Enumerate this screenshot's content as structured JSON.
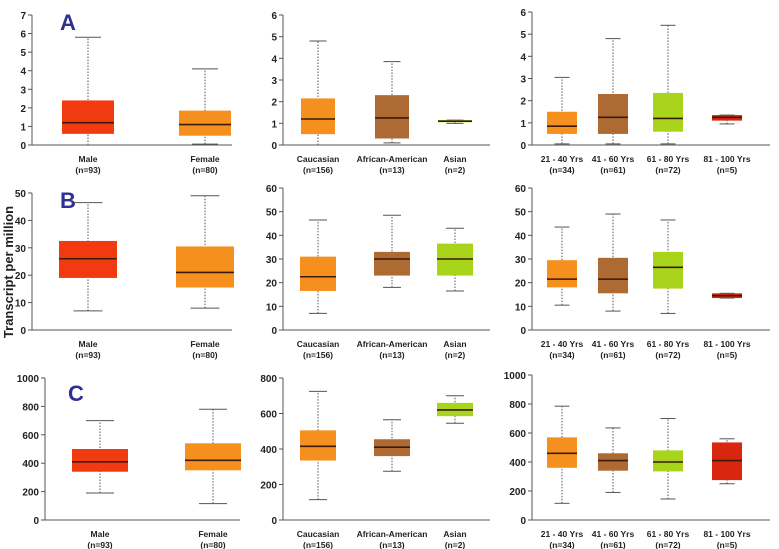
{
  "ylabel": "Transcript per million",
  "colors": {
    "red": "#f23a10",
    "orange": "#f5901f",
    "brown": "#ad6a33",
    "lime": "#a9d41c",
    "darkred": "#d8260f",
    "letter": "#2e3192"
  },
  "chart_data": [
    {
      "type": "box",
      "panel_label": "A",
      "ylim": [
        0,
        7
      ],
      "yticks": [
        0,
        1,
        2,
        3,
        4,
        5,
        6,
        7
      ],
      "categories": [
        {
          "name": "Male",
          "n": "(n=93)",
          "color": "red",
          "stats": [
            0,
            0.6,
            1.2,
            2.4,
            5.8
          ]
        },
        {
          "name": "Female",
          "n": "(n=80)",
          "color": "orange",
          "stats": [
            0.05,
            0.5,
            1.1,
            1.85,
            4.1
          ]
        }
      ]
    },
    {
      "type": "box",
      "panel_label": "",
      "ylim": [
        0,
        6
      ],
      "yticks": [
        0,
        1,
        2,
        3,
        4,
        5,
        6
      ],
      "categories": [
        {
          "name": "Caucasian",
          "n": "(n=156)",
          "color": "orange",
          "stats": [
            0,
            0.5,
            1.2,
            2.15,
            4.8
          ]
        },
        {
          "name": "African-American",
          "n": "(n=13)",
          "color": "brown",
          "stats": [
            0.1,
            0.3,
            1.25,
            2.3,
            3.85
          ]
        },
        {
          "name": "Asian",
          "n": "(n=2)",
          "color": "lime",
          "stats": [
            1.0,
            1.05,
            1.1,
            1.15,
            1.15
          ]
        }
      ]
    },
    {
      "type": "box",
      "panel_label": "",
      "ylim": [
        0,
        6
      ],
      "yticks": [
        0,
        1,
        2,
        3,
        4,
        5,
        6
      ],
      "categories": [
        {
          "name": "21 - 40 Yrs",
          "n": "(n=34)",
          "color": "orange",
          "stats": [
            0.05,
            0.5,
            0.85,
            1.5,
            3.05
          ]
        },
        {
          "name": "41 - 60 Yrs",
          "n": "(n=61)",
          "color": "brown",
          "stats": [
            0.05,
            0.5,
            1.25,
            2.3,
            4.8
          ]
        },
        {
          "name": "61 - 80 Yrs",
          "n": "(n=72)",
          "color": "lime",
          "stats": [
            0.05,
            0.6,
            1.2,
            2.35,
            5.4
          ]
        },
        {
          "name": "81 - 100 Yrs",
          "n": "(n=5)",
          "color": "darkred",
          "stats": [
            0.95,
            1.1,
            1.25,
            1.35,
            1.35
          ]
        }
      ]
    },
    {
      "type": "box",
      "panel_label": "B",
      "ylim": [
        0,
        50
      ],
      "yticks": [
        0,
        10,
        20,
        30,
        40,
        50
      ],
      "categories": [
        {
          "name": "Male",
          "n": "(n=93)",
          "color": "red",
          "stats": [
            7,
            19,
            26,
            32.5,
            46.5
          ]
        },
        {
          "name": "Female",
          "n": "(n=80)",
          "color": "orange",
          "stats": [
            8,
            15.5,
            21,
            30.5,
            49
          ]
        }
      ]
    },
    {
      "type": "box",
      "panel_label": "",
      "ylim": [
        0,
        60
      ],
      "yticks": [
        0,
        10,
        20,
        30,
        40,
        50,
        60
      ],
      "categories": [
        {
          "name": "Caucasian",
          "n": "(n=156)",
          "color": "orange",
          "stats": [
            7,
            16.5,
            22.5,
            31,
            46.5
          ]
        },
        {
          "name": "African-American",
          "n": "(n=13)",
          "color": "brown",
          "stats": [
            18,
            23,
            30,
            33,
            48.5
          ]
        },
        {
          "name": "Asian",
          "n": "(n=2)",
          "color": "lime",
          "stats": [
            16.5,
            23,
            30,
            36.5,
            43
          ]
        }
      ]
    },
    {
      "type": "box",
      "panel_label": "",
      "ylim": [
        0,
        60
      ],
      "yticks": [
        0,
        10,
        20,
        30,
        40,
        50,
        60
      ],
      "categories": [
        {
          "name": "21 - 40 Yrs",
          "n": "(n=34)",
          "color": "orange",
          "stats": [
            10.5,
            18,
            21.5,
            29.5,
            43.5
          ]
        },
        {
          "name": "41 - 60 Yrs",
          "n": "(n=61)",
          "color": "brown",
          "stats": [
            8,
            15.5,
            21.5,
            30.5,
            49
          ]
        },
        {
          "name": "61 - 80 Yrs",
          "n": "(n=72)",
          "color": "lime",
          "stats": [
            7,
            17.5,
            26.5,
            33,
            46.5
          ]
        },
        {
          "name": "81 - 100 Yrs",
          "n": "(n=5)",
          "color": "darkred",
          "stats": [
            13.5,
            13.5,
            14.5,
            15.5,
            15.5
          ]
        }
      ]
    },
    {
      "type": "box",
      "panel_label": "C",
      "ylim": [
        0,
        1000
      ],
      "yticks": [
        0,
        200,
        400,
        600,
        800,
        1000
      ],
      "categories": [
        {
          "name": "Male",
          "n": "(n=93)",
          "color": "red",
          "stats": [
            190,
            340,
            410,
            500,
            700
          ]
        },
        {
          "name": "Female",
          "n": "(n=80)",
          "color": "orange",
          "stats": [
            115,
            350,
            420,
            540,
            780
          ]
        }
      ]
    },
    {
      "type": "box",
      "panel_label": "",
      "ylim": [
        0,
        800
      ],
      "yticks": [
        0,
        200,
        400,
        600,
        800
      ],
      "categories": [
        {
          "name": "Caucasian",
          "n": "(n=156)",
          "color": "orange",
          "stats": [
            115,
            335,
            415,
            505,
            725
          ]
        },
        {
          "name": "African-American",
          "n": "(n=13)",
          "color": "brown",
          "stats": [
            275,
            360,
            410,
            455,
            565
          ]
        },
        {
          "name": "Asian",
          "n": "(n=2)",
          "color": "lime",
          "stats": [
            545,
            585,
            620,
            660,
            700
          ]
        }
      ]
    },
    {
      "type": "box",
      "panel_label": "",
      "ylim": [
        0,
        1000
      ],
      "yticks": [
        0,
        200,
        400,
        600,
        800,
        1000
      ],
      "categories": [
        {
          "name": "21 - 40 Yrs",
          "n": "(n=34)",
          "color": "orange",
          "stats": [
            115,
            360,
            460,
            570,
            785
          ]
        },
        {
          "name": "41 - 60 Yrs",
          "n": "(n=61)",
          "color": "brown",
          "stats": [
            190,
            340,
            410,
            460,
            635
          ]
        },
        {
          "name": "61 - 80 Yrs",
          "n": "(n=72)",
          "color": "lime",
          "stats": [
            145,
            335,
            400,
            480,
            700
          ]
        },
        {
          "name": "81 - 100 Yrs",
          "n": "(n=5)",
          "color": "darkred",
          "stats": [
            250,
            275,
            410,
            535,
            560
          ]
        }
      ]
    }
  ]
}
